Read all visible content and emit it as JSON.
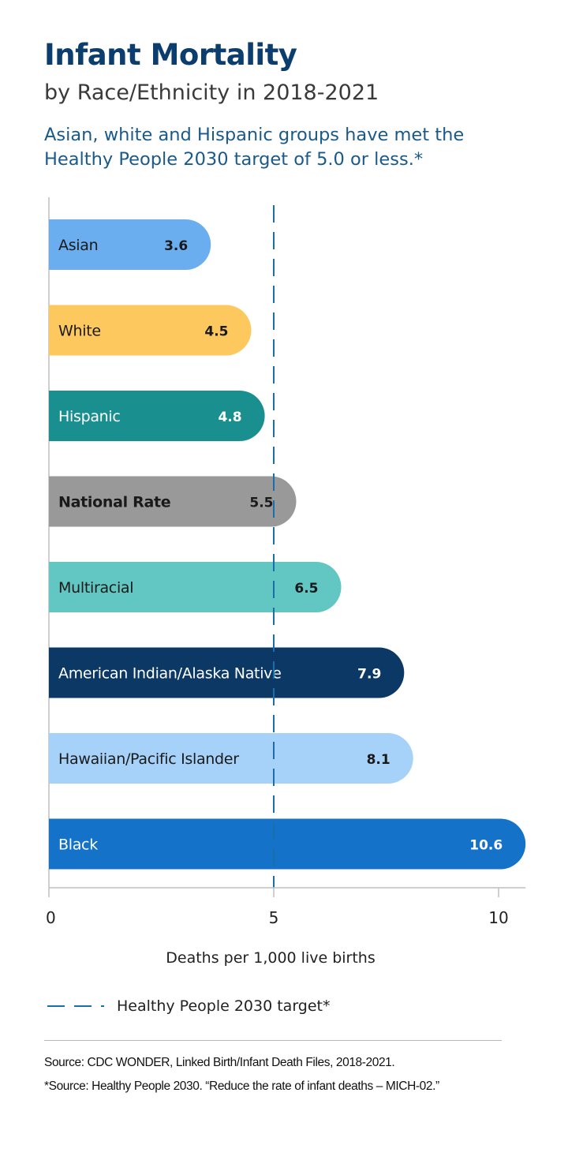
{
  "title": "Infant Mortality",
  "subtitle": "by Race/Ethnicity in 2018-2021",
  "note": "Asian, white and Hispanic groups have met the Healthy People 2030 target of 5.0 or less.*",
  "legend": {
    "label": "Healthy People 2030 target*",
    "icon": "dashed-line-icon"
  },
  "sources": [
    "Source: CDC WONDER, Linked Birth/Infant Death Files, 2018-2021.",
    "*Source: Healthy People 2030. “Reduce the rate of infant deaths – MICH-02.”"
  ],
  "chart_data": {
    "type": "bar",
    "orientation": "horizontal",
    "title": "Infant Mortality",
    "subtitle": "by Race/Ethnicity in 2018-2021",
    "xlabel": "Deaths per 1,000 live births",
    "ylabel": "",
    "xlim": [
      0,
      10.6
    ],
    "xticks": [
      0,
      5,
      10
    ],
    "grid": false,
    "legend_placement": "bottom",
    "reference_line": {
      "value": 5,
      "label": "Healthy People 2030 target*",
      "style": "dashed",
      "color": "#1a6fa8"
    },
    "categories": [
      "Asian",
      "White",
      "Hispanic",
      "National Rate",
      "Multiracial",
      "American Indian/Alaska Native",
      "Hawaiian/Pacific Islander",
      "Black"
    ],
    "values": [
      3.6,
      4.5,
      4.8,
      5.5,
      6.5,
      7.9,
      8.1,
      10.6
    ],
    "value_labels": [
      "3.6",
      "4.5",
      "4.8",
      "5.5",
      "6.5",
      "7.9",
      "8.1",
      "10.6"
    ],
    "bar_colors": [
      "#6aaef0",
      "#fdc95e",
      "#1a8f8f",
      "#999999",
      "#62c6c2",
      "#0b3865",
      "#a6d2fa",
      "#1572c9"
    ],
    "text_colors": [
      "#1a1a1a",
      "#1a1a1a",
      "#ffffff",
      "#1a1a1a",
      "#1a1a1a",
      "#ffffff",
      "#1a1a1a",
      "#ffffff"
    ],
    "bold_labels": [
      false,
      false,
      false,
      true,
      false,
      false,
      false,
      false
    ]
  }
}
